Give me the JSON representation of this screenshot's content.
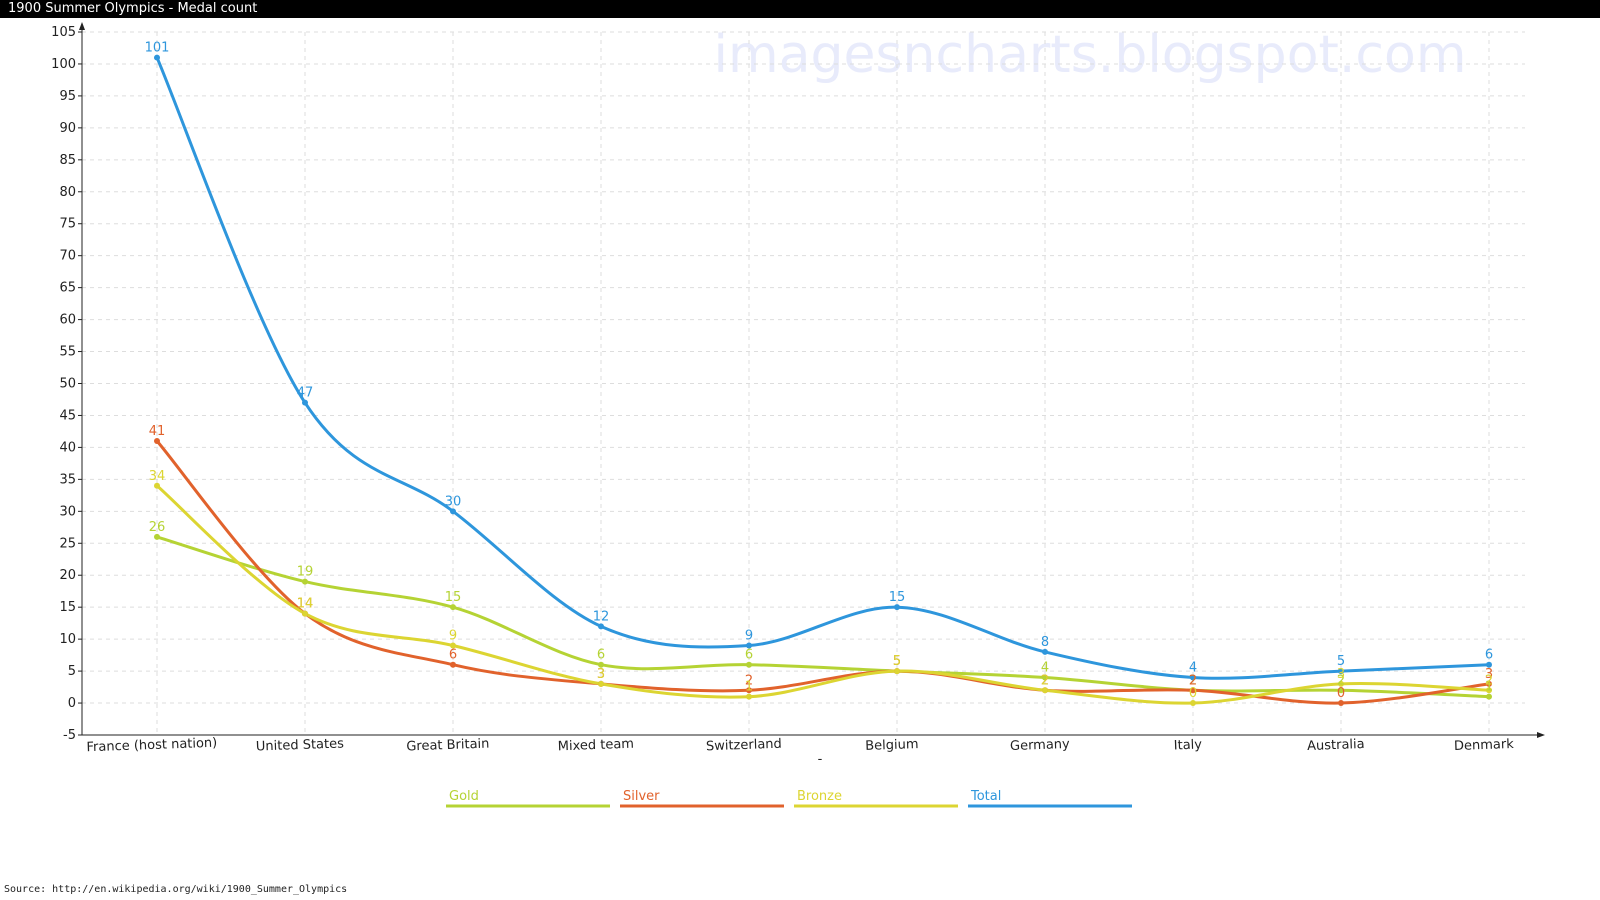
{
  "window": {
    "title": "1900 Summer Olympics - Medal count"
  },
  "watermark": "imagesncharts.blogspot.com",
  "xaxis_marker": "-",
  "source": "Source:  http://en.wikipedia.org/wiki/1900_Summer_Olympics",
  "chart_data": {
    "type": "line",
    "title": "",
    "xlabel": "",
    "ylabel": "",
    "ylim": [
      -5,
      105
    ],
    "ytick_step": 5,
    "grid": true,
    "legend_position": "bottom-center",
    "categories": [
      "France (host nation)",
      "United States",
      "Great Britain",
      "Mixed team",
      "Switzerland",
      "Belgium",
      "Germany",
      "Italy",
      "Australia",
      "Denmark"
    ],
    "series": [
      {
        "name": "Gold",
        "color": "#b5d334",
        "values": [
          26,
          19,
          15,
          6,
          6,
          5,
          4,
          2,
          2,
          1
        ]
      },
      {
        "name": "Silver",
        "color": "#e1622c",
        "values": [
          41,
          14,
          6,
          3,
          2,
          5,
          2,
          2,
          0,
          3
        ]
      },
      {
        "name": "Bronze",
        "color": "#dcd532",
        "values": [
          34,
          14,
          9,
          3,
          1,
          5,
          2,
          0,
          3,
          2
        ]
      },
      {
        "name": "Total",
        "color": "#2e96dc",
        "values": [
          101,
          47,
          30,
          12,
          9,
          15,
          8,
          4,
          5,
          6
        ]
      }
    ]
  }
}
